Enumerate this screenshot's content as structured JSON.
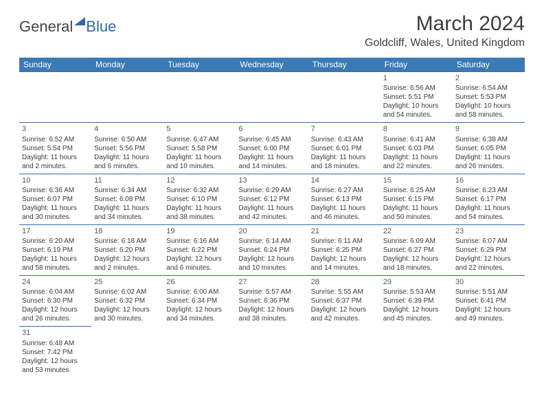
{
  "logo": {
    "general": "General",
    "blue": "Blue"
  },
  "title": "March 2024",
  "location": "Goldcliff, Wales, United Kingdom",
  "colors": {
    "header_bg": "#3a7ab5",
    "border": "#2f6aa8",
    "text": "#3a3a3a"
  },
  "day_headers": [
    "Sunday",
    "Monday",
    "Tuesday",
    "Wednesday",
    "Thursday",
    "Friday",
    "Saturday"
  ],
  "weeks": [
    [
      null,
      null,
      null,
      null,
      null,
      {
        "n": "1",
        "sr": "Sunrise: 6:56 AM",
        "ss": "Sunset: 5:51 PM",
        "dl": "Daylight: 10 hours and 54 minutes."
      },
      {
        "n": "2",
        "sr": "Sunrise: 6:54 AM",
        "ss": "Sunset: 5:53 PM",
        "dl": "Daylight: 10 hours and 58 minutes."
      }
    ],
    [
      {
        "n": "3",
        "sr": "Sunrise: 6:52 AM",
        "ss": "Sunset: 5:54 PM",
        "dl": "Daylight: 11 hours and 2 minutes."
      },
      {
        "n": "4",
        "sr": "Sunrise: 6:50 AM",
        "ss": "Sunset: 5:56 PM",
        "dl": "Daylight: 11 hours and 6 minutes."
      },
      {
        "n": "5",
        "sr": "Sunrise: 6:47 AM",
        "ss": "Sunset: 5:58 PM",
        "dl": "Daylight: 11 hours and 10 minutes."
      },
      {
        "n": "6",
        "sr": "Sunrise: 6:45 AM",
        "ss": "Sunset: 6:00 PM",
        "dl": "Daylight: 11 hours and 14 minutes."
      },
      {
        "n": "7",
        "sr": "Sunrise: 6:43 AM",
        "ss": "Sunset: 6:01 PM",
        "dl": "Daylight: 11 hours and 18 minutes."
      },
      {
        "n": "8",
        "sr": "Sunrise: 6:41 AM",
        "ss": "Sunset: 6:03 PM",
        "dl": "Daylight: 11 hours and 22 minutes."
      },
      {
        "n": "9",
        "sr": "Sunrise: 6:38 AM",
        "ss": "Sunset: 6:05 PM",
        "dl": "Daylight: 11 hours and 26 minutes."
      }
    ],
    [
      {
        "n": "10",
        "sr": "Sunrise: 6:36 AM",
        "ss": "Sunset: 6:07 PM",
        "dl": "Daylight: 11 hours and 30 minutes."
      },
      {
        "n": "11",
        "sr": "Sunrise: 6:34 AM",
        "ss": "Sunset: 6:08 PM",
        "dl": "Daylight: 11 hours and 34 minutes."
      },
      {
        "n": "12",
        "sr": "Sunrise: 6:32 AM",
        "ss": "Sunset: 6:10 PM",
        "dl": "Daylight: 11 hours and 38 minutes."
      },
      {
        "n": "13",
        "sr": "Sunrise: 6:29 AM",
        "ss": "Sunset: 6:12 PM",
        "dl": "Daylight: 11 hours and 42 minutes."
      },
      {
        "n": "14",
        "sr": "Sunrise: 6:27 AM",
        "ss": "Sunset: 6:13 PM",
        "dl": "Daylight: 11 hours and 46 minutes."
      },
      {
        "n": "15",
        "sr": "Sunrise: 6:25 AM",
        "ss": "Sunset: 6:15 PM",
        "dl": "Daylight: 11 hours and 50 minutes."
      },
      {
        "n": "16",
        "sr": "Sunrise: 6:23 AM",
        "ss": "Sunset: 6:17 PM",
        "dl": "Daylight: 11 hours and 54 minutes."
      }
    ],
    [
      {
        "n": "17",
        "sr": "Sunrise: 6:20 AM",
        "ss": "Sunset: 6:19 PM",
        "dl": "Daylight: 11 hours and 58 minutes."
      },
      {
        "n": "18",
        "sr": "Sunrise: 6:18 AM",
        "ss": "Sunset: 6:20 PM",
        "dl": "Daylight: 12 hours and 2 minutes."
      },
      {
        "n": "19",
        "sr": "Sunrise: 6:16 AM",
        "ss": "Sunset: 6:22 PM",
        "dl": "Daylight: 12 hours and 6 minutes."
      },
      {
        "n": "20",
        "sr": "Sunrise: 6:14 AM",
        "ss": "Sunset: 6:24 PM",
        "dl": "Daylight: 12 hours and 10 minutes."
      },
      {
        "n": "21",
        "sr": "Sunrise: 6:11 AM",
        "ss": "Sunset: 6:25 PM",
        "dl": "Daylight: 12 hours and 14 minutes."
      },
      {
        "n": "22",
        "sr": "Sunrise: 6:09 AM",
        "ss": "Sunset: 6:27 PM",
        "dl": "Daylight: 12 hours and 18 minutes."
      },
      {
        "n": "23",
        "sr": "Sunrise: 6:07 AM",
        "ss": "Sunset: 6:29 PM",
        "dl": "Daylight: 12 hours and 22 minutes."
      }
    ],
    [
      {
        "n": "24",
        "sr": "Sunrise: 6:04 AM",
        "ss": "Sunset: 6:30 PM",
        "dl": "Daylight: 12 hours and 26 minutes."
      },
      {
        "n": "25",
        "sr": "Sunrise: 6:02 AM",
        "ss": "Sunset: 6:32 PM",
        "dl": "Daylight: 12 hours and 30 minutes."
      },
      {
        "n": "26",
        "sr": "Sunrise: 6:00 AM",
        "ss": "Sunset: 6:34 PM",
        "dl": "Daylight: 12 hours and 34 minutes."
      },
      {
        "n": "27",
        "sr": "Sunrise: 5:57 AM",
        "ss": "Sunset: 6:36 PM",
        "dl": "Daylight: 12 hours and 38 minutes."
      },
      {
        "n": "28",
        "sr": "Sunrise: 5:55 AM",
        "ss": "Sunset: 6:37 PM",
        "dl": "Daylight: 12 hours and 42 minutes."
      },
      {
        "n": "29",
        "sr": "Sunrise: 5:53 AM",
        "ss": "Sunset: 6:39 PM",
        "dl": "Daylight: 12 hours and 45 minutes."
      },
      {
        "n": "30",
        "sr": "Sunrise: 5:51 AM",
        "ss": "Sunset: 6:41 PM",
        "dl": "Daylight: 12 hours and 49 minutes."
      }
    ],
    [
      {
        "n": "31",
        "sr": "Sunrise: 6:48 AM",
        "ss": "Sunset: 7:42 PM",
        "dl": "Daylight: 12 hours and 53 minutes."
      },
      null,
      null,
      null,
      null,
      null,
      null
    ]
  ]
}
